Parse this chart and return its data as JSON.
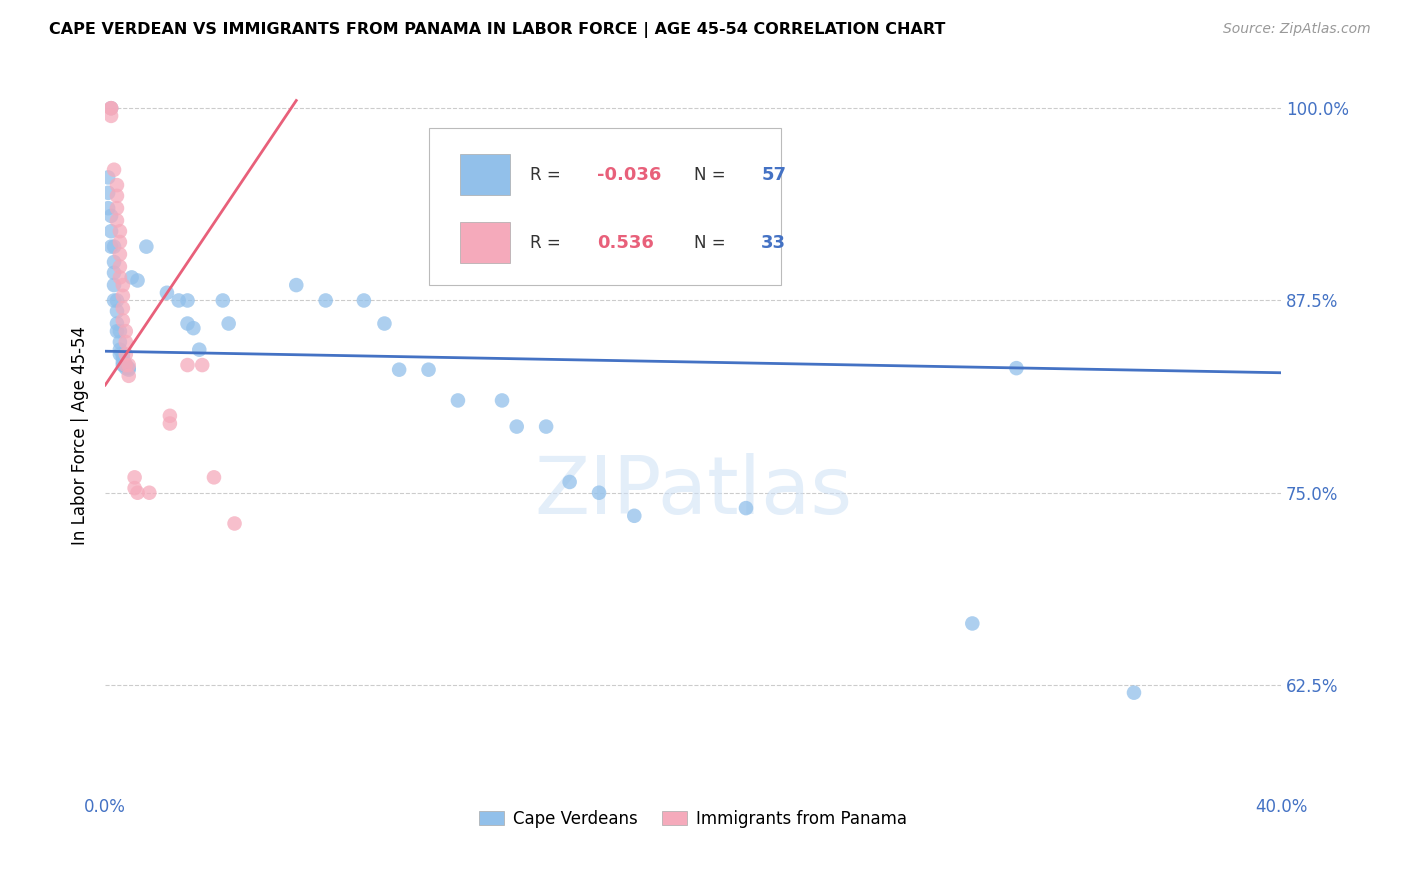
{
  "title": "CAPE VERDEAN VS IMMIGRANTS FROM PANAMA IN LABOR FORCE | AGE 45-54 CORRELATION CHART",
  "source": "Source: ZipAtlas.com",
  "ylabel": "In Labor Force | Age 45-54",
  "xlim": [
    0.0,
    0.4
  ],
  "ylim": [
    0.555,
    1.02
  ],
  "yticks": [
    0.625,
    0.75,
    0.875,
    1.0
  ],
  "ytick_labels": [
    "62.5%",
    "75.0%",
    "87.5%",
    "100.0%"
  ],
  "xticks": [
    0.0,
    0.05,
    0.1,
    0.15,
    0.2,
    0.25,
    0.3,
    0.35,
    0.4
  ],
  "xtick_labels": [
    "0.0%",
    "",
    "",
    "",
    "",
    "",
    "",
    "",
    "40.0%"
  ],
  "blue_R": "-0.036",
  "blue_N": "57",
  "pink_R": "0.536",
  "pink_N": "33",
  "blue_color": "#92C0EA",
  "pink_color": "#F5AABB",
  "blue_line_color": "#4472C4",
  "pink_line_color": "#E8607A",
  "watermark": "ZIPatlas",
  "blue_points": [
    [
      0.002,
      1.0
    ],
    [
      0.001,
      0.955
    ],
    [
      0.001,
      0.945
    ],
    [
      0.001,
      0.935
    ],
    [
      0.002,
      0.93
    ],
    [
      0.002,
      0.92
    ],
    [
      0.002,
      0.91
    ],
    [
      0.003,
      0.91
    ],
    [
      0.003,
      0.9
    ],
    [
      0.003,
      0.893
    ],
    [
      0.003,
      0.885
    ],
    [
      0.003,
      0.875
    ],
    [
      0.004,
      0.875
    ],
    [
      0.004,
      0.868
    ],
    [
      0.004,
      0.86
    ],
    [
      0.004,
      0.855
    ],
    [
      0.005,
      0.855
    ],
    [
      0.005,
      0.848
    ],
    [
      0.005,
      0.843
    ],
    [
      0.005,
      0.84
    ],
    [
      0.006,
      0.84
    ],
    [
      0.006,
      0.838
    ],
    [
      0.006,
      0.835
    ],
    [
      0.006,
      0.833
    ],
    [
      0.007,
      0.833
    ],
    [
      0.007,
      0.833
    ],
    [
      0.007,
      0.831
    ],
    [
      0.008,
      0.831
    ],
    [
      0.008,
      0.83
    ],
    [
      0.009,
      0.89
    ],
    [
      0.011,
      0.888
    ],
    [
      0.014,
      0.91
    ],
    [
      0.021,
      0.88
    ],
    [
      0.025,
      0.875
    ],
    [
      0.028,
      0.875
    ],
    [
      0.028,
      0.86
    ],
    [
      0.03,
      0.857
    ],
    [
      0.032,
      0.843
    ],
    [
      0.04,
      0.875
    ],
    [
      0.042,
      0.86
    ],
    [
      0.065,
      0.885
    ],
    [
      0.075,
      0.875
    ],
    [
      0.088,
      0.875
    ],
    [
      0.095,
      0.86
    ],
    [
      0.1,
      0.83
    ],
    [
      0.11,
      0.83
    ],
    [
      0.12,
      0.81
    ],
    [
      0.135,
      0.81
    ],
    [
      0.14,
      0.793
    ],
    [
      0.15,
      0.793
    ],
    [
      0.158,
      0.757
    ],
    [
      0.168,
      0.75
    ],
    [
      0.18,
      0.735
    ],
    [
      0.218,
      0.74
    ],
    [
      0.295,
      0.665
    ],
    [
      0.31,
      0.831
    ],
    [
      0.35,
      0.62
    ]
  ],
  "pink_points": [
    [
      0.002,
      1.0
    ],
    [
      0.002,
      1.0
    ],
    [
      0.002,
      0.995
    ],
    [
      0.003,
      0.96
    ],
    [
      0.004,
      0.95
    ],
    [
      0.004,
      0.943
    ],
    [
      0.004,
      0.935
    ],
    [
      0.004,
      0.927
    ],
    [
      0.005,
      0.92
    ],
    [
      0.005,
      0.913
    ],
    [
      0.005,
      0.905
    ],
    [
      0.005,
      0.897
    ],
    [
      0.005,
      0.89
    ],
    [
      0.006,
      0.885
    ],
    [
      0.006,
      0.878
    ],
    [
      0.006,
      0.87
    ],
    [
      0.006,
      0.862
    ],
    [
      0.007,
      0.855
    ],
    [
      0.007,
      0.848
    ],
    [
      0.007,
      0.84
    ],
    [
      0.007,
      0.833
    ],
    [
      0.008,
      0.833
    ],
    [
      0.008,
      0.826
    ],
    [
      0.01,
      0.76
    ],
    [
      0.01,
      0.753
    ],
    [
      0.011,
      0.75
    ],
    [
      0.015,
      0.75
    ],
    [
      0.022,
      0.8
    ],
    [
      0.022,
      0.795
    ],
    [
      0.028,
      0.833
    ],
    [
      0.033,
      0.833
    ],
    [
      0.037,
      0.76
    ],
    [
      0.044,
      0.73
    ]
  ],
  "blue_trend_x": [
    0.0,
    0.4
  ],
  "blue_trend_y": [
    0.842,
    0.828
  ],
  "pink_trend_x": [
    0.0,
    0.065
  ],
  "pink_trend_y": [
    0.82,
    1.005
  ]
}
